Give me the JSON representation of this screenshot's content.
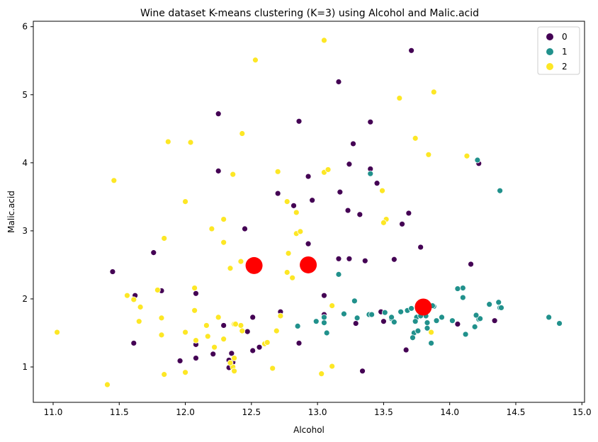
{
  "chart_data": {
    "type": "scatter",
    "title": "Wine dataset K-means clustering (K=3) using Alcohol and Malic.acid",
    "xlabel": "Alcohol",
    "ylabel": "Malic.acid",
    "xlim": [
      10.85,
      15.02
    ],
    "ylim": [
      0.48,
      6.08
    ],
    "xticks": [
      11.0,
      11.5,
      12.0,
      12.5,
      13.0,
      13.5,
      14.0,
      14.5,
      15.0
    ],
    "xtick_labels": [
      "11.0",
      "11.5",
      "12.0",
      "12.5",
      "13.0",
      "13.5",
      "14.0",
      "14.5",
      "15.0"
    ],
    "yticks": [
      1,
      2,
      3,
      4,
      5,
      6
    ],
    "ytick_labels": [
      "1",
      "2",
      "3",
      "4",
      "5",
      "6"
    ],
    "legend": {
      "placement": "top-right",
      "entries": [
        {
          "label": "0",
          "color": "#440154"
        },
        {
          "label": "1",
          "color": "#21918c"
        },
        {
          "label": "2",
          "color": "#fde725"
        }
      ]
    },
    "centroid_color": "#ff0000",
    "centroids": [
      {
        "x": 12.52,
        "y": 2.49
      },
      {
        "x": 12.93,
        "y": 2.5
      },
      {
        "x": 13.8,
        "y": 1.88
      }
    ],
    "series": [
      {
        "name": "0",
        "color": "#440154",
        "points": [
          [
            13.71,
            5.65
          ],
          [
            13.16,
            5.19
          ],
          [
            12.25,
            4.72
          ],
          [
            12.86,
            4.61
          ],
          [
            13.4,
            4.6
          ],
          [
            13.27,
            4.28
          ],
          [
            14.22,
            3.99
          ],
          [
            13.24,
            3.98
          ],
          [
            12.25,
            3.88
          ],
          [
            13.4,
            3.91
          ],
          [
            12.93,
            3.8
          ],
          [
            13.45,
            3.7
          ],
          [
            12.7,
            3.55
          ],
          [
            13.17,
            3.57
          ],
          [
            12.96,
            3.45
          ],
          [
            12.82,
            3.37
          ],
          [
            13.23,
            3.3
          ],
          [
            13.69,
            3.26
          ],
          [
            13.32,
            3.24
          ],
          [
            13.64,
            3.1
          ],
          [
            12.45,
            3.03
          ],
          [
            12.93,
            2.81
          ],
          [
            13.78,
            2.76
          ],
          [
            11.76,
            2.68
          ],
          [
            13.58,
            2.58
          ],
          [
            13.16,
            2.59
          ],
          [
            13.24,
            2.59
          ],
          [
            13.36,
            2.56
          ],
          [
            14.16,
            2.51
          ],
          [
            12.55,
            2.46
          ],
          [
            11.45,
            2.4
          ],
          [
            11.82,
            2.12
          ],
          [
            12.08,
            2.08
          ],
          [
            11.62,
            2.05
          ],
          [
            13.05,
            2.05
          ],
          [
            12.47,
            1.52
          ],
          [
            12.34,
            2.45
          ],
          [
            13.48,
            1.81
          ],
          [
            12.72,
            1.81
          ],
          [
            13.05,
            1.77
          ],
          [
            12.51,
            1.73
          ],
          [
            12.29,
            1.61
          ],
          [
            14.06,
            1.63
          ],
          [
            13.29,
            1.64
          ],
          [
            13.5,
            1.67
          ],
          [
            14.34,
            1.68
          ],
          [
            11.61,
            1.35
          ],
          [
            12.08,
            1.33
          ],
          [
            12.51,
            1.24
          ],
          [
            12.86,
            1.35
          ],
          [
            12.56,
            1.29
          ],
          [
            12.35,
            1.2
          ],
          [
            12.21,
            1.19
          ],
          [
            12.08,
            1.13
          ],
          [
            12.33,
            1.1
          ],
          [
            11.96,
            1.09
          ],
          [
            12.36,
            1.07
          ],
          [
            12.33,
            0.99
          ],
          [
            13.34,
            0.94
          ],
          [
            13.67,
            1.25
          ]
        ]
      },
      {
        "name": "1",
        "color": "#21918c",
        "points": [
          [
            14.21,
            4.04
          ],
          [
            14.38,
            3.59
          ],
          [
            13.4,
            3.84
          ],
          [
            13.16,
            2.36
          ],
          [
            14.1,
            2.16
          ],
          [
            14.06,
            2.15
          ],
          [
            14.1,
            2.02
          ],
          [
            13.28,
            1.97
          ],
          [
            14.37,
            1.95
          ],
          [
            14.3,
            1.92
          ],
          [
            14.38,
            1.87
          ],
          [
            14.39,
            1.87
          ],
          [
            13.88,
            1.89
          ],
          [
            13.73,
            1.5
          ],
          [
            13.2,
            1.78
          ],
          [
            13.05,
            1.73
          ],
          [
            13.51,
            1.8
          ],
          [
            13.39,
            1.77
          ],
          [
            13.77,
            1.9
          ],
          [
            13.72,
            1.43
          ],
          [
            13.63,
            1.81
          ],
          [
            13.68,
            1.83
          ],
          [
            14.22,
            1.7
          ],
          [
            14.23,
            1.71
          ],
          [
            14.02,
            1.68
          ],
          [
            14.2,
            1.76
          ],
          [
            14.75,
            1.73
          ],
          [
            14.83,
            1.64
          ],
          [
            13.86,
            1.35
          ],
          [
            13.94,
            1.73
          ],
          [
            13.56,
            1.71
          ],
          [
            13.56,
            1.73
          ],
          [
            13.58,
            1.66
          ],
          [
            13.9,
            1.68
          ],
          [
            13.82,
            1.75
          ],
          [
            13.83,
            1.65
          ],
          [
            13.05,
            1.65
          ],
          [
            13.07,
            1.5
          ],
          [
            12.85,
            1.6
          ],
          [
            12.99,
            1.67
          ],
          [
            13.3,
            1.72
          ],
          [
            13.75,
            1.73
          ],
          [
            13.74,
            1.67
          ],
          [
            13.78,
            1.75
          ],
          [
            13.76,
            1.53
          ],
          [
            13.71,
            1.86
          ],
          [
            13.87,
            1.9
          ],
          [
            13.83,
            1.57
          ],
          [
            14.12,
            1.48
          ],
          [
            14.19,
            1.59
          ],
          [
            13.05,
            1.73
          ],
          [
            13.41,
            1.77
          ]
        ]
      },
      {
        "name": "2",
        "color": "#fde725",
        "points": [
          [
            12.53,
            5.51
          ],
          [
            13.05,
            5.8
          ],
          [
            13.62,
            4.95
          ],
          [
            13.88,
            5.04
          ],
          [
            11.87,
            4.31
          ],
          [
            12.04,
            4.3
          ],
          [
            12.43,
            4.43
          ],
          [
            13.74,
            4.36
          ],
          [
            13.84,
            4.12
          ],
          [
            14.13,
            4.1
          ],
          [
            11.46,
            3.74
          ],
          [
            12.36,
            3.83
          ],
          [
            12.7,
            3.87
          ],
          [
            13.05,
            3.86
          ],
          [
            13.08,
            3.9
          ],
          [
            12.0,
            3.43
          ],
          [
            12.77,
            3.43
          ],
          [
            12.84,
            3.27
          ],
          [
            13.49,
            3.59
          ],
          [
            13.52,
            3.17
          ],
          [
            13.5,
            3.12
          ],
          [
            12.29,
            3.17
          ],
          [
            12.2,
            3.03
          ],
          [
            12.84,
            2.96
          ],
          [
            12.87,
            2.99
          ],
          [
            11.84,
            2.89
          ],
          [
            12.29,
            2.83
          ],
          [
            12.42,
            2.55
          ],
          [
            12.78,
            2.67
          ],
          [
            12.77,
            2.39
          ],
          [
            12.81,
            2.31
          ],
          [
            12.34,
            2.45
          ],
          [
            11.56,
            2.05
          ],
          [
            11.79,
            2.13
          ],
          [
            12.07,
            2.16
          ],
          [
            11.61,
            1.99
          ],
          [
            11.66,
            1.88
          ],
          [
            12.07,
            1.83
          ],
          [
            12.37,
            1.63
          ],
          [
            12.25,
            1.73
          ],
          [
            12.16,
            1.61
          ],
          [
            11.82,
            1.72
          ],
          [
            11.65,
            1.67
          ],
          [
            12.42,
            1.61
          ],
          [
            12.43,
            1.53
          ],
          [
            12.69,
            1.53
          ],
          [
            12.17,
            1.45
          ],
          [
            11.03,
            1.51
          ],
          [
            12.0,
            1.51
          ],
          [
            12.29,
            1.41
          ],
          [
            11.82,
            1.47
          ],
          [
            12.08,
            1.39
          ],
          [
            12.22,
            1.29
          ],
          [
            12.6,
            1.34
          ],
          [
            12.62,
            1.36
          ],
          [
            12.72,
            1.75
          ],
          [
            12.37,
            1.13
          ],
          [
            12.36,
            1.0
          ],
          [
            12.37,
            0.94
          ],
          [
            12.0,
            0.92
          ],
          [
            11.84,
            0.89
          ],
          [
            12.66,
            0.98
          ],
          [
            13.11,
            1.01
          ],
          [
            13.03,
            0.9
          ],
          [
            11.41,
            0.74
          ],
          [
            13.11,
            1.9
          ],
          [
            13.86,
            1.51
          ],
          [
            12.34,
            1.06
          ],
          [
            12.38,
            1.63
          ]
        ]
      }
    ]
  }
}
